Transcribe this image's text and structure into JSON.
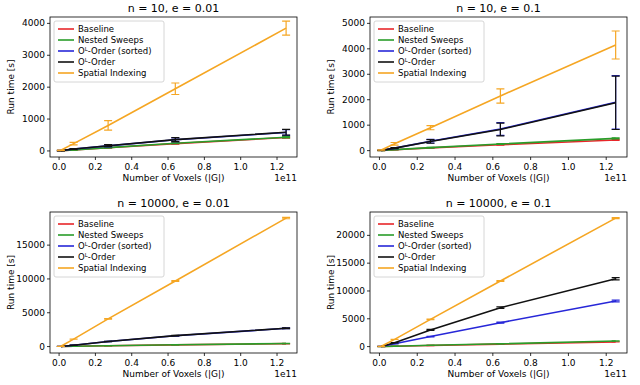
{
  "chart_data": [
    {
      "type": "line",
      "title": "n = 10, e = 0.01",
      "x_label": "Number of Voxels (|G|)",
      "y_label": "Run time [s]",
      "annotations": [
        "1e11"
      ],
      "legend": "upper left",
      "x": [
        0.01,
        0.08,
        0.27,
        0.64,
        1.25
      ],
      "xlim": [
        -0.05,
        1.31
      ],
      "xticks": [
        {
          "value": 0,
          "label": "0.0"
        },
        {
          "value": 0.2,
          "label": "0.2"
        },
        {
          "value": 0.4,
          "label": "0.4"
        },
        {
          "value": 0.6,
          "label": "0.6"
        },
        {
          "value": 0.8,
          "label": "0.8"
        },
        {
          "value": 1.0,
          "label": "1.0"
        },
        {
          "value": 1.2,
          "label": "1.2"
        }
      ],
      "ylim": [
        -190,
        4200
      ],
      "yticks": [
        0,
        1000,
        2000,
        3000,
        4000
      ],
      "series": [
        {
          "name": "Baseline",
          "color": "#e8262a",
          "values": [
            5,
            30,
            100,
            230,
            420
          ],
          "errors": [
            2,
            5,
            10,
            15,
            20
          ]
        },
        {
          "name": "Nested Sweeps",
          "color": "#2a9d2a",
          "values": [
            5,
            32,
            105,
            240,
            430
          ],
          "errors": [
            2,
            5,
            10,
            15,
            20
          ]
        },
        {
          "name": "Oᴸ-Order (sorted)",
          "color": "#2727d8",
          "values": [
            10,
            60,
            160,
            350,
            580
          ],
          "errors": [
            5,
            10,
            30,
            60,
            90
          ]
        },
        {
          "name": "Oᴸ-Order",
          "color": "#111111",
          "values": [
            10,
            62,
            165,
            355,
            585
          ],
          "errors": [
            5,
            10,
            30,
            60,
            90
          ]
        },
        {
          "name": "Spatial Indexing",
          "color": "#f5a623",
          "values": [
            20,
            230,
            800,
            1950,
            3850
          ],
          "errors": [
            10,
            40,
            150,
            180,
            220
          ]
        }
      ]
    },
    {
      "type": "line",
      "title": "n = 10, e = 0.1",
      "x_label": "Number of Voxels (|G|)",
      "y_label": "Run time [s]",
      "annotations": [
        "1e11"
      ],
      "legend": "upper left",
      "x": [
        0.01,
        0.08,
        0.27,
        0.64,
        1.25
      ],
      "xlim": [
        -0.05,
        1.31
      ],
      "xticks": [
        {
          "value": 0,
          "label": "0.0"
        },
        {
          "value": 0.2,
          "label": "0.2"
        },
        {
          "value": 0.4,
          "label": "0.4"
        },
        {
          "value": 0.6,
          "label": "0.6"
        },
        {
          "value": 0.8,
          "label": "0.8"
        },
        {
          "value": 1.0,
          "label": "1.0"
        },
        {
          "value": 1.2,
          "label": "1.2"
        }
      ],
      "ylim": [
        -250,
        5250
      ],
      "yticks": [
        0,
        1000,
        2000,
        3000,
        4000,
        5000
      ],
      "series": [
        {
          "name": "Baseline",
          "color": "#e8262a",
          "values": [
            5,
            35,
            110,
            230,
            420
          ],
          "errors": [
            2,
            5,
            10,
            15,
            20
          ]
        },
        {
          "name": "Nested Sweeps",
          "color": "#2a9d2a",
          "values": [
            5,
            40,
            120,
            260,
            480
          ],
          "errors": [
            2,
            5,
            10,
            15,
            20
          ]
        },
        {
          "name": "Oᴸ-Order (sorted)",
          "color": "#2727d8",
          "values": [
            10,
            100,
            370,
            850,
            1900
          ],
          "errors": [
            5,
            20,
            70,
            250,
            1050
          ]
        },
        {
          "name": "Oᴸ-Order",
          "color": "#111111",
          "values": [
            10,
            100,
            360,
            830,
            1880
          ],
          "errors": [
            5,
            20,
            70,
            250,
            1050
          ]
        },
        {
          "name": "Spatial Indexing",
          "color": "#f5a623",
          "values": [
            25,
            270,
            900,
            2150,
            4150
          ],
          "errors": [
            10,
            50,
            80,
            280,
            550
          ]
        }
      ]
    },
    {
      "type": "line",
      "title": "n = 10000, e = 0.01",
      "x_label": "Number of Voxels (|G|)",
      "y_label": "Run time [s]",
      "annotations": [
        "1e11"
      ],
      "legend": "upper left",
      "x": [
        0.01,
        0.08,
        0.27,
        0.64,
        1.25
      ],
      "xlim": [
        -0.05,
        1.31
      ],
      "xticks": [
        {
          "value": 0,
          "label": "0.0"
        },
        {
          "value": 0.2,
          "label": "0.2"
        },
        {
          "value": 0.4,
          "label": "0.4"
        },
        {
          "value": 0.6,
          "label": "0.6"
        },
        {
          "value": 0.8,
          "label": "0.8"
        },
        {
          "value": 1.0,
          "label": "1.0"
        },
        {
          "value": 1.2,
          "label": "1.2"
        }
      ],
      "ylim": [
        -950,
        19900
      ],
      "yticks": [
        0,
        5000,
        10000,
        15000
      ],
      "series": [
        {
          "name": "Baseline",
          "color": "#e8262a",
          "values": [
            10,
            40,
            120,
            250,
            430
          ],
          "errors": [
            2,
            5,
            10,
            15,
            20
          ]
        },
        {
          "name": "Nested Sweeps",
          "color": "#2a9d2a",
          "values": [
            10,
            40,
            130,
            260,
            450
          ],
          "errors": [
            2,
            5,
            10,
            15,
            20
          ]
        },
        {
          "name": "Oᴸ-Order (sorted)",
          "color": "#2727d8",
          "values": [
            20,
            200,
            750,
            1600,
            2700
          ],
          "errors": [
            2,
            10,
            20,
            40,
            60
          ]
        },
        {
          "name": "Oᴸ-Order",
          "color": "#111111",
          "values": [
            20,
            205,
            760,
            1620,
            2720
          ],
          "errors": [
            2,
            10,
            20,
            40,
            60
          ]
        },
        {
          "name": "Spatial Indexing",
          "color": "#f5a623",
          "values": [
            40,
            1100,
            4100,
            9700,
            19000
          ],
          "errors": [
            5,
            20,
            40,
            60,
            100
          ]
        }
      ]
    },
    {
      "type": "line",
      "title": "n = 10000, e = 0.1",
      "x_label": "Number of Voxels (|G|)",
      "y_label": "Run time [s]",
      "annotations": [
        "1e11"
      ],
      "legend": "upper left",
      "x": [
        0.01,
        0.08,
        0.27,
        0.64,
        1.25
      ],
      "xlim": [
        -0.05,
        1.31
      ],
      "xticks": [
        {
          "value": 0,
          "label": "0.0"
        },
        {
          "value": 0.2,
          "label": "0.2"
        },
        {
          "value": 0.4,
          "label": "0.4"
        },
        {
          "value": 0.6,
          "label": "0.6"
        },
        {
          "value": 0.8,
          "label": "0.8"
        },
        {
          "value": 1.0,
          "label": "1.0"
        },
        {
          "value": 1.2,
          "label": "1.2"
        }
      ],
      "ylim": [
        -1150,
        24200
      ],
      "yticks": [
        0,
        5000,
        10000,
        15000,
        20000
      ],
      "series": [
        {
          "name": "Baseline",
          "color": "#e8262a",
          "values": [
            10,
            60,
            200,
            450,
            850
          ],
          "errors": [
            2,
            5,
            10,
            15,
            20
          ]
        },
        {
          "name": "Nested Sweeps",
          "color": "#2a9d2a",
          "values": [
            10,
            70,
            230,
            500,
            1000
          ],
          "errors": [
            2,
            5,
            10,
            15,
            20
          ]
        },
        {
          "name": "Oᴸ-Order (sorted)",
          "color": "#2727d8",
          "values": [
            25,
            500,
            1800,
            4300,
            8200
          ],
          "errors": [
            5,
            20,
            50,
            100,
            150
          ]
        },
        {
          "name": "Oᴸ-Order",
          "color": "#111111",
          "values": [
            30,
            700,
            3000,
            7000,
            12200
          ],
          "errors": [
            5,
            30,
            80,
            150,
            200
          ]
        },
        {
          "name": "Spatial Indexing",
          "color": "#f5a623",
          "values": [
            50,
            1300,
            4900,
            11800,
            23100
          ],
          "errors": [
            5,
            20,
            40,
            60,
            100
          ]
        }
      ]
    }
  ]
}
